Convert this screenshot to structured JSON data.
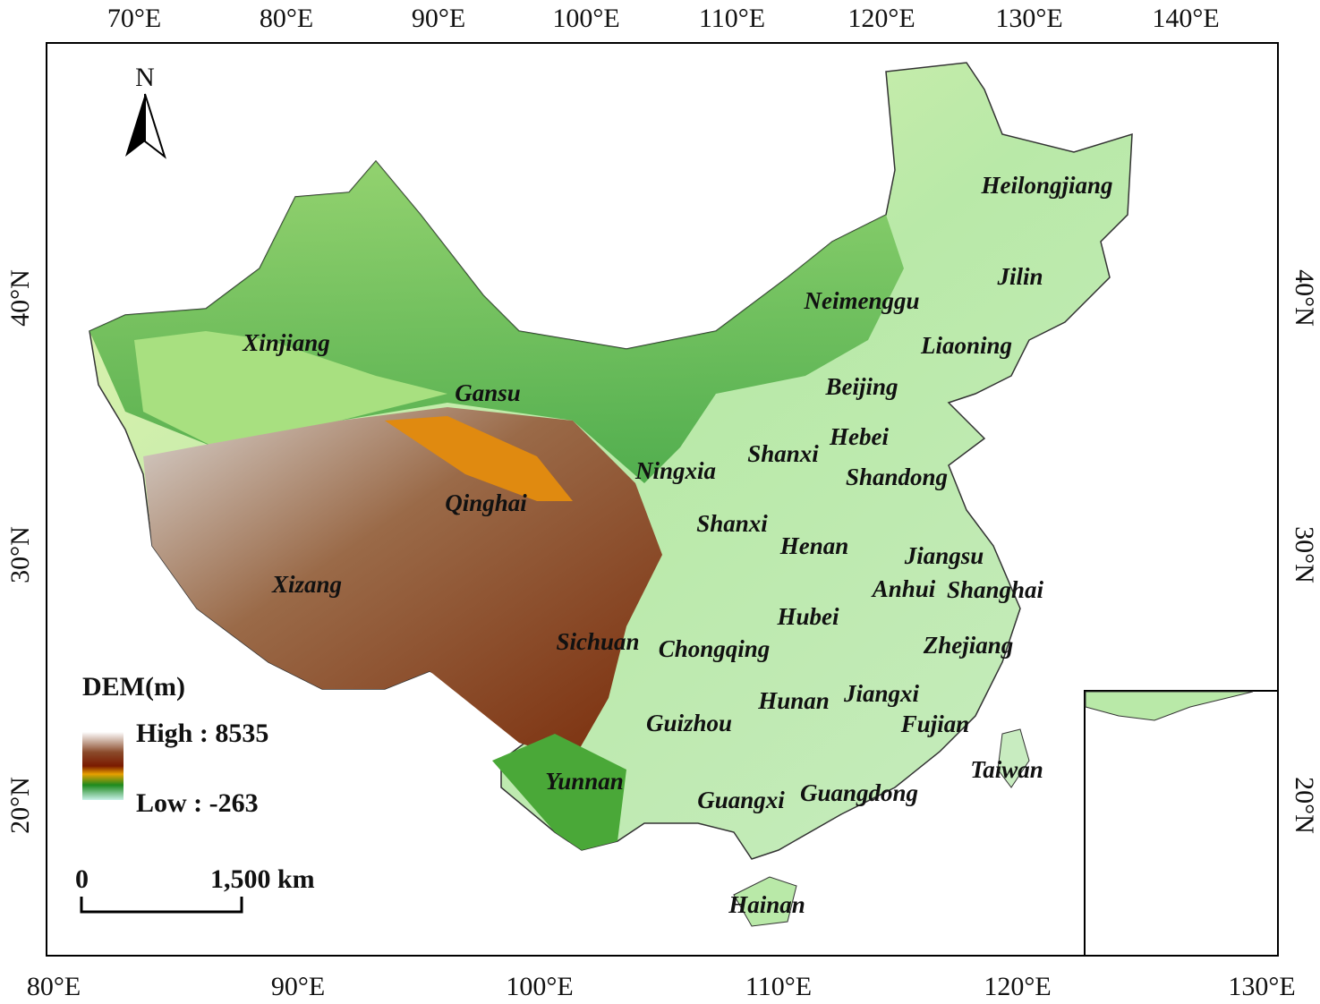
{
  "map": {
    "top_axis": [
      "70°E",
      "80°E",
      "90°E",
      "100°E",
      "110°E",
      "120°E",
      "130°E",
      "140°E"
    ],
    "bottom_axis": [
      "80°E",
      "90°E",
      "100°E",
      "110°E",
      "120°E",
      "130°E"
    ],
    "left_axis": [
      "40°N",
      "30°N",
      "20°N"
    ],
    "right_axis": [
      "40°N",
      "30°N",
      "20°N"
    ],
    "north": "N",
    "legend": {
      "title": "DEM(m)",
      "high": "High : 8535",
      "low": "Low : -263"
    },
    "scale_bar": {
      "start": "0",
      "end": "1,500  km"
    },
    "provinces": [
      "Heilongjiang",
      "Jilin",
      "Neimenggu",
      "Liaoning",
      "Xinjiang",
      "Gansu",
      "Beijing",
      "Hebei",
      "Ningxia",
      "Shanxi",
      "Shandong",
      "Qinghai",
      "Shanxi",
      "Henan",
      "Jiangsu",
      "Xizang",
      "Anhui",
      "Shanghai",
      "Hubei",
      "Sichuan",
      "Chongqing",
      "Zhejiang",
      "Hunan",
      "Jiangxi",
      "Guizhou",
      "Fujian",
      "Taiwan",
      "Yunnan",
      "Guangxi",
      "Guangdong",
      "Hainan"
    ]
  }
}
